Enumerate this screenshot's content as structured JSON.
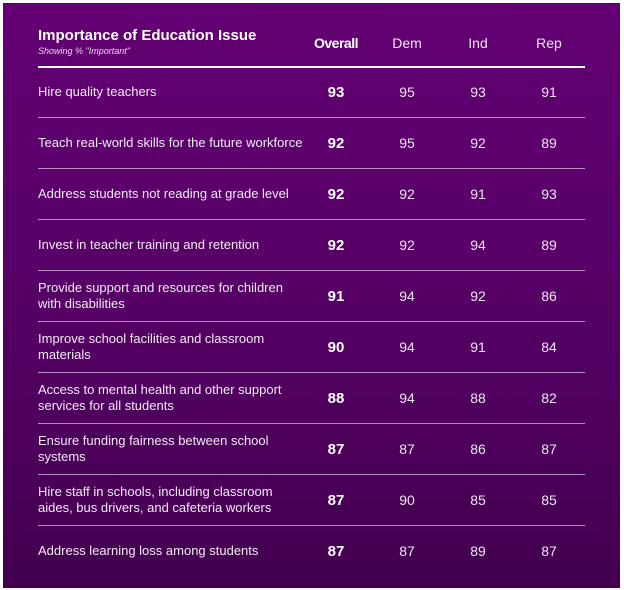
{
  "chart_data": {
    "type": "table",
    "title": "Importance of Education Issue",
    "subtitle": "Showing % \"Important\"",
    "columns": [
      "Overall",
      "Dem",
      "Ind",
      "Rep"
    ],
    "rows": [
      {
        "label": "Hire quality teachers",
        "values": [
          93,
          95,
          93,
          91
        ]
      },
      {
        "label": "Teach real-world skills for the future workforce",
        "values": [
          92,
          95,
          92,
          89
        ]
      },
      {
        "label": "Address students not reading at grade level",
        "values": [
          92,
          92,
          91,
          93
        ]
      },
      {
        "label": "Invest in teacher training and retention",
        "values": [
          92,
          92,
          94,
          89
        ]
      },
      {
        "label": "Provide support and resources for children with disabilities",
        "values": [
          91,
          94,
          92,
          86
        ]
      },
      {
        "label": "Improve school facilities and classroom materials",
        "values": [
          90,
          94,
          91,
          84
        ]
      },
      {
        "label": "Access to mental health and other support services for all students",
        "values": [
          88,
          94,
          88,
          82
        ]
      },
      {
        "label": "Ensure funding fairness between school systems",
        "values": [
          87,
          87,
          86,
          87
        ]
      },
      {
        "label": "Hire staff in schools, including classroom aides, bus drivers, and cafeteria workers",
        "values": [
          87,
          90,
          85,
          85
        ]
      },
      {
        "label": "Address learning loss among students",
        "values": [
          87,
          87,
          89,
          87
        ]
      }
    ]
  },
  "colors": {
    "background_top": "#640074",
    "background_bottom": "#43004f",
    "divider": "#b88ec6"
  }
}
